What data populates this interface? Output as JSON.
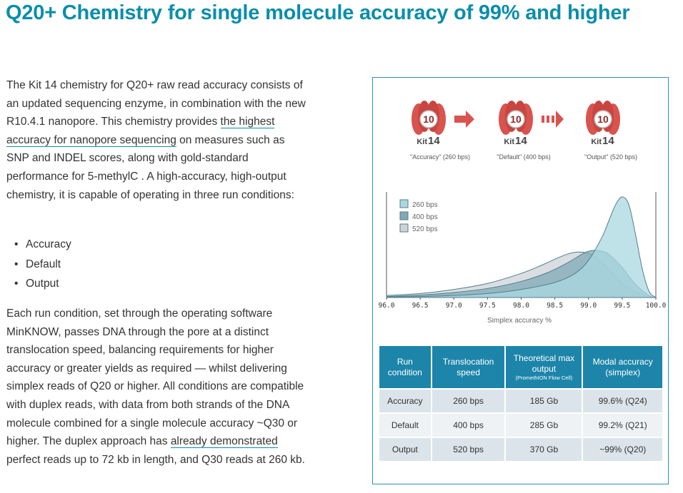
{
  "page": {
    "title": "Q20+ Chemistry for single molecule accuracy of 99% and higher"
  },
  "intro": {
    "text_1": "The Kit 14 chemistry for Q20+ raw read accuracy consists of an updated sequencing enzyme, in combination with the new R10.4.1 nanopore. This chemistry provides ",
    "link_1": "the highest accuracy for nanopore sequencing",
    "text_2": " on measures such as SNP and INDEL scores, along with gold-standard performance for 5-methylC . A high-accuracy, high-output chemistry, it is capable of operating in three run conditions:"
  },
  "run_conditions_list": [
    "Accuracy",
    "Default",
    "Output"
  ],
  "outro": {
    "text_1": "Each run condition, set through the operating software MinKNOW, passes DNA through the pore at a distinct translocation speed, balancing requirements for higher accuracy or greater yields as required — whilst delivering simplex reads of Q20 or higher. All conditions are compatible with duplex reads, with data from both strands of the DNA molecule combined for a single molecule accuracy ~Q30 or higher. The duplex approach has ",
    "link_1": "already demonstrated",
    "text_2": " perfect reads up to 72 kb in length, and Q30 reads at 260 kb."
  },
  "figure": {
    "kits": [
      {
        "number": "10",
        "kit_word": "Kit",
        "kit_number": "14",
        "caption": "\"Accuracy\" (260 bps)",
        "arrow": "solid"
      },
      {
        "number": "10",
        "kit_word": "Kit",
        "kit_number": "14",
        "caption": "\"Default\" (400 bps)",
        "arrow": "dashed"
      },
      {
        "number": "10",
        "kit_word": "Kit",
        "kit_number": "14",
        "caption": "\"Output\" (520 bps)",
        "arrow": "none"
      }
    ],
    "colors": {
      "accent": "#0a8eab",
      "kit_red": "#d9534f",
      "s260": "#a9d8e2",
      "s400": "#7fa9b6",
      "s520": "#cdd3d8",
      "table_header": "#1d85a9"
    },
    "table": {
      "headers": [
        "Run condition",
        "Translocation speed",
        "Theoretical max output",
        "Modal accuracy (simplex)"
      ],
      "header_note": "(PromethION Flow Cell)",
      "rows": [
        [
          "Accuracy",
          "260 bps",
          "185 Gb",
          "99.6% (Q24)"
        ],
        [
          "Default",
          "400 bps",
          "285 Gb",
          "99.2% (Q21)"
        ],
        [
          "Output",
          "520 bps",
          "370 Gb",
          "~99% (Q20)"
        ]
      ]
    }
  },
  "chart_data": {
    "type": "area",
    "xlabel": "Simplex accuracy %",
    "ylabel": "",
    "xlim": [
      96.0,
      100.0
    ],
    "ylim": [
      0,
      1.05
    ],
    "x_ticks": [
      "96.0",
      "96.5",
      "97.0",
      "97.5",
      "98.0",
      "98.5",
      "99.0",
      "99.5",
      "100.0"
    ],
    "grid": false,
    "legend_position": "top-left",
    "series": [
      {
        "name": "520 bps",
        "color": "#cdd3d8",
        "x": [
          96.0,
          96.5,
          97.0,
          97.5,
          98.0,
          98.3,
          98.6,
          98.8,
          99.0,
          99.1,
          99.3,
          99.5,
          99.7,
          99.9,
          100.0
        ],
        "y": [
          0.02,
          0.04,
          0.08,
          0.14,
          0.24,
          0.32,
          0.41,
          0.45,
          0.44,
          0.4,
          0.28,
          0.14,
          0.05,
          0.01,
          0.0
        ]
      },
      {
        "name": "400 bps",
        "color": "#7fa9b6",
        "x": [
          96.0,
          96.5,
          97.0,
          97.5,
          98.0,
          98.4,
          98.7,
          98.9,
          99.0,
          99.1,
          99.2,
          99.3,
          99.5,
          99.7,
          99.9,
          100.0
        ],
        "y": [
          0.01,
          0.025,
          0.05,
          0.09,
          0.16,
          0.25,
          0.35,
          0.43,
          0.46,
          0.47,
          0.46,
          0.43,
          0.3,
          0.13,
          0.02,
          0.0
        ]
      },
      {
        "name": "260 bps",
        "color": "#a9d8e2",
        "x": [
          96.0,
          96.5,
          97.0,
          97.5,
          98.0,
          98.5,
          98.8,
          99.0,
          99.2,
          99.3,
          99.4,
          99.5,
          99.6,
          99.7,
          99.8,
          99.9,
          100.0
        ],
        "y": [
          0.005,
          0.01,
          0.02,
          0.04,
          0.08,
          0.15,
          0.24,
          0.37,
          0.6,
          0.76,
          0.92,
          1.0,
          0.92,
          0.62,
          0.28,
          0.06,
          0.0
        ]
      }
    ]
  }
}
